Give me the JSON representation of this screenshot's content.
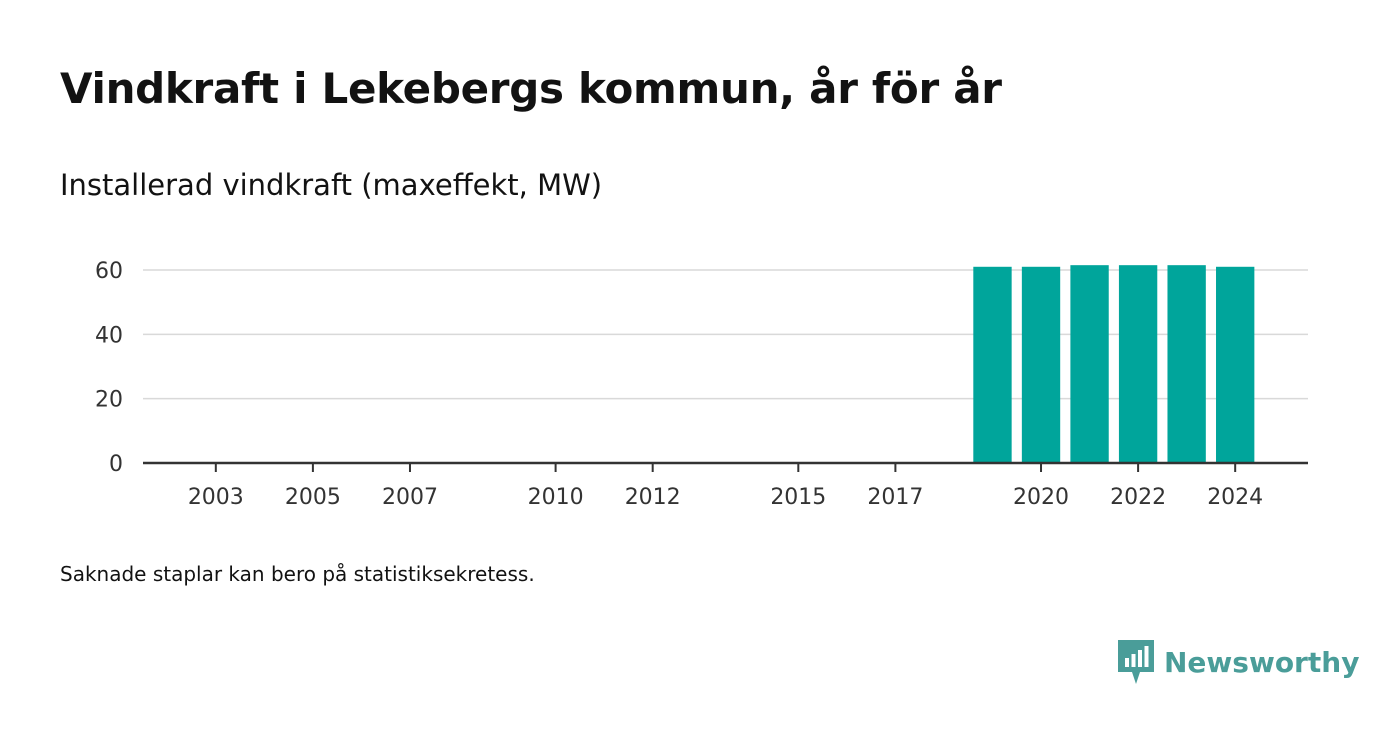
{
  "title": "Vindkraft i Lekebergs kommun, år för år",
  "subtitle": "Installerad vindkraft (maxeffekt, MW)",
  "footnote": "Saknade staplar kan bero på statistiksekretess.",
  "brand": {
    "name": "Newsworthy",
    "icon": "newsworthy-logo-icon",
    "color": "#4a9d99"
  },
  "chart_data": {
    "type": "bar",
    "x": [
      2019,
      2020,
      2021,
      2022,
      2023,
      2024
    ],
    "values": [
      61,
      61,
      61.5,
      61.5,
      61.5,
      61
    ],
    "xticks": [
      "2003",
      "2005",
      "2007",
      "2010",
      "2012",
      "2015",
      "2017",
      "2020",
      "2022",
      "2024"
    ],
    "yticks": [
      "0",
      "20",
      "40",
      "60"
    ],
    "xlim": [
      2001.5,
      2025.5
    ],
    "ylim": [
      0,
      60
    ],
    "grid": true,
    "bar_color": "#00a59b",
    "title": "",
    "xlabel": "",
    "ylabel": ""
  }
}
